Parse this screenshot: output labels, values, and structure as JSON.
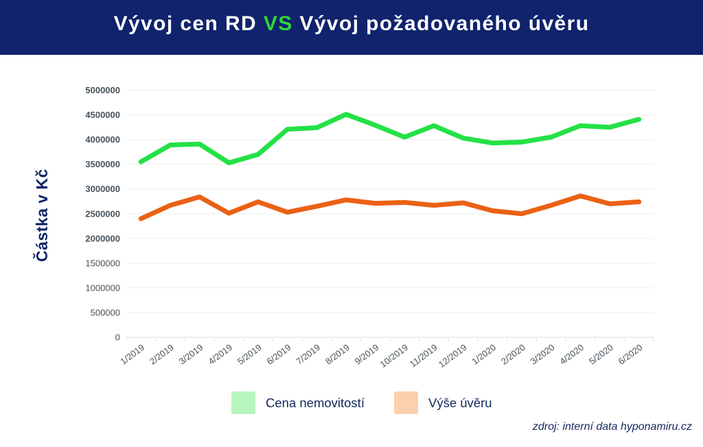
{
  "header": {
    "title_prefix": "Vývoj cen RD ",
    "title_vs": "VS",
    "title_suffix": " Vývoj požadovaného úvěru"
  },
  "colors": {
    "header_bg": "#10236c",
    "title_text": "#ffffff",
    "title_vs_green": "#2fd63c",
    "line_green": "#24e146",
    "line_orange": "#eb6114",
    "legend_swatch_green": "#b8f4bd",
    "legend_swatch_orange": "#fbd0ae",
    "legend_text": "#14275e",
    "axis_tick_text": "#47525a",
    "gridline": "#ededed",
    "axis_line": "#dcdcdc",
    "axis_title_text": "#0e2464",
    "source_text": "#14275e"
  },
  "chart_data": {
    "type": "line",
    "title": "Vývoj cen RD VS Vývoj požadovaného úvěru",
    "xlabel": "",
    "ylabel": "Částka v Kč",
    "ylim": [
      0,
      5000000
    ],
    "yticks": [
      0,
      500000,
      1000000,
      1500000,
      2000000,
      2500000,
      3000000,
      3500000,
      4000000,
      4500000,
      5000000
    ],
    "ytick_bold_min": 2000000,
    "grid": true,
    "legend_position": "bottom",
    "categories": [
      "1/2019",
      "2/2019",
      "3/2019",
      "4/2019",
      "5/2019",
      "6/2019",
      "7/2019",
      "8/2019",
      "9/2019",
      "10/2019",
      "11/2019",
      "12/2019",
      "1/2020",
      "2/2020",
      "3/2020",
      "4/2020",
      "5/2020",
      "6/2020"
    ],
    "series": [
      {
        "name": "Cena nemovitostí",
        "color": "#24e146",
        "values": [
          3550000,
          3890000,
          3910000,
          3530000,
          3700000,
          4210000,
          4240000,
          4510000,
          4290000,
          4050000,
          4280000,
          4030000,
          3930000,
          3950000,
          4050000,
          4280000,
          4250000,
          4410000
        ]
      },
      {
        "name": "Výše úvěru",
        "color": "#eb6114",
        "values": [
          2400000,
          2670000,
          2840000,
          2510000,
          2740000,
          2530000,
          2650000,
          2780000,
          2710000,
          2730000,
          2670000,
          2720000,
          2560000,
          2500000,
          2670000,
          2860000,
          2700000,
          2740000
        ]
      }
    ]
  },
  "legend": {
    "items": [
      {
        "label": "Cena nemovitostí",
        "swatch": "#b8f4bd"
      },
      {
        "label": "Výše úvěru",
        "swatch": "#fbd0ae"
      }
    ]
  },
  "source": {
    "text": "zdroj: interní data hyponamiru.cz"
  }
}
